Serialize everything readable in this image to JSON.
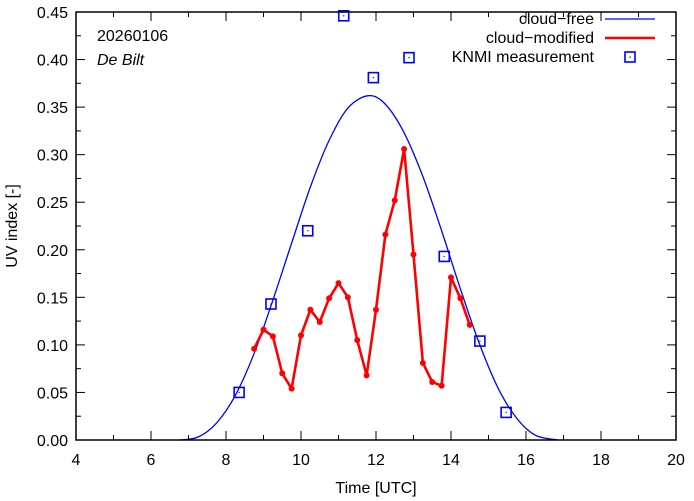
{
  "chart_data": {
    "type": "line",
    "title": "",
    "xlabel": "Time  [UTC]",
    "ylabel": "UV index  [-]",
    "xlim": [
      4,
      20
    ],
    "ylim": [
      0,
      0.45
    ],
    "grid": false,
    "xticks": [
      4,
      6,
      8,
      10,
      12,
      14,
      16,
      18,
      20
    ],
    "xtick_labels": [
      "4",
      "6",
      "8",
      "10",
      "12",
      "14",
      "16",
      "18",
      "20"
    ],
    "yticks": [
      0,
      0.05,
      0.1,
      0.15,
      0.2,
      0.25,
      0.3,
      0.35,
      0.4,
      0.45
    ],
    "ytick_labels": [
      "0.00",
      "0.05",
      "0.10",
      "0.15",
      "0.20",
      "0.25",
      "0.30",
      "0.35",
      "0.40",
      "0.45"
    ],
    "annotations": {
      "date": "20260106",
      "location": "De Bilt"
    },
    "legend_position": "top-right",
    "series": [
      {
        "name": "cloud−free",
        "style": "line",
        "color": "#0000ff",
        "x": [
          6.75,
          7.25,
          7.75,
          8.25,
          8.75,
          9.25,
          9.75,
          10.25,
          10.75,
          11.25,
          11.8,
          12.25,
          12.75,
          13.25,
          13.75,
          14.25,
          14.75,
          15.25,
          15.75,
          16.25,
          16.85
        ],
        "y": [
          0.0,
          0.003,
          0.018,
          0.047,
          0.091,
          0.147,
          0.207,
          0.266,
          0.315,
          0.349,
          0.362,
          0.353,
          0.323,
          0.277,
          0.22,
          0.159,
          0.102,
          0.055,
          0.023,
          0.005,
          0.0
        ]
      },
      {
        "name": "cloud−modified",
        "style": "line-points",
        "color": "#ff0000",
        "x": [
          8.75,
          9.0,
          9.25,
          9.5,
          9.75,
          10.0,
          10.25,
          10.5,
          10.75,
          11.0,
          11.25,
          11.5,
          11.75,
          12.0,
          12.25,
          12.5,
          12.75,
          13.0,
          13.25,
          13.5,
          13.75,
          14.0,
          14.25,
          14.5
        ],
        "y": [
          0.096,
          0.116,
          0.109,
          0.07,
          0.054,
          0.11,
          0.137,
          0.124,
          0.149,
          0.165,
          0.15,
          0.105,
          0.068,
          0.137,
          0.216,
          0.252,
          0.306,
          0.195,
          0.081,
          0.061,
          0.057,
          0.171,
          0.149,
          0.121
        ]
      },
      {
        "name": "KNMI measurement",
        "style": "points",
        "color": "#0000ff",
        "x": [
          8.35,
          9.2,
          10.18,
          11.14,
          11.93,
          12.88,
          13.82,
          14.77,
          15.47
        ],
        "y": [
          0.05,
          0.143,
          0.22,
          0.446,
          0.381,
          0.402,
          0.193,
          0.104,
          0.029
        ]
      }
    ]
  }
}
